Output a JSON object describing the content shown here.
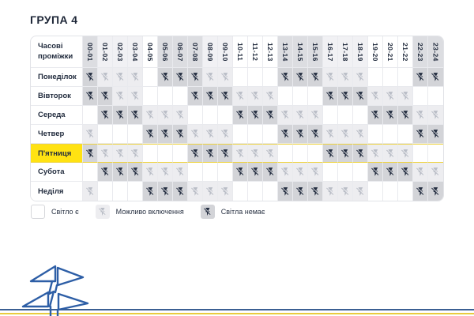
{
  "title": "ГРУПА 4",
  "chart_data": {
    "type": "heatmap",
    "title": "ГРУПА 4",
    "corner_label": "Часові проміжки",
    "x_labels": [
      "00-01",
      "01-02",
      "02-03",
      "03-04",
      "04-05",
      "05-06",
      "06-07",
      "07-08",
      "08-09",
      "09-10",
      "10-11",
      "11-12",
      "12-13",
      "13-14",
      "14-15",
      "15-16",
      "16-17",
      "17-18",
      "18-19",
      "19-20",
      "20-21",
      "21-22",
      "22-23",
      "23-24"
    ],
    "y_labels": [
      "Понеділок",
      "Вівторок",
      "Середа",
      "Четвер",
      "П'ятниця",
      "Субота",
      "Неділя"
    ],
    "highlighted_row": "П'ятниця",
    "value_legend": {
      "0": "Світло є",
      "1": "Можливо включення",
      "2": "Світла немає"
    },
    "values": [
      [
        2,
        1,
        1,
        1,
        0,
        2,
        2,
        2,
        1,
        1,
        0,
        0,
        0,
        2,
        2,
        2,
        1,
        1,
        1,
        0,
        0,
        0,
        2,
        2
      ],
      [
        2,
        2,
        1,
        1,
        0,
        0,
        0,
        2,
        2,
        2,
        1,
        1,
        1,
        0,
        0,
        0,
        2,
        2,
        2,
        1,
        1,
        1,
        0,
        0
      ],
      [
        0,
        2,
        2,
        2,
        1,
        1,
        1,
        0,
        0,
        0,
        2,
        2,
        2,
        1,
        1,
        1,
        0,
        0,
        0,
        2,
        2,
        2,
        1,
        1
      ],
      [
        1,
        0,
        0,
        0,
        2,
        2,
        2,
        1,
        1,
        1,
        0,
        0,
        0,
        2,
        2,
        2,
        1,
        1,
        1,
        0,
        0,
        0,
        2,
        2
      ],
      [
        2,
        1,
        1,
        1,
        0,
        0,
        0,
        2,
        2,
        2,
        1,
        1,
        1,
        0,
        0,
        0,
        2,
        2,
        2,
        1,
        1,
        1,
        0,
        0
      ],
      [
        0,
        2,
        2,
        2,
        1,
        1,
        1,
        0,
        0,
        0,
        2,
        2,
        2,
        1,
        1,
        1,
        0,
        0,
        0,
        2,
        2,
        2,
        1,
        1
      ],
      [
        1,
        0,
        0,
        0,
        2,
        2,
        2,
        1,
        1,
        1,
        0,
        0,
        0,
        2,
        2,
        2,
        1,
        1,
        1,
        0,
        0,
        0,
        2,
        2
      ]
    ]
  },
  "legend": [
    {
      "label": "Світло є",
      "state": 0
    },
    {
      "label": "Можливо включення",
      "state": 1
    },
    {
      "label": "Світла немає",
      "state": 2
    }
  ],
  "colors": {
    "light_on": "#ffffff",
    "maybe_on": "#ededf0",
    "light_off": "#d3d4d8",
    "icon_dark": "#232d40",
    "icon_light": "#b9bdc6",
    "highlight_yellow": "#ffe212",
    "tower_blue": "#2d5ea6",
    "line_blue": "#3b5f93",
    "line_yellow": "#e9cb3e"
  }
}
